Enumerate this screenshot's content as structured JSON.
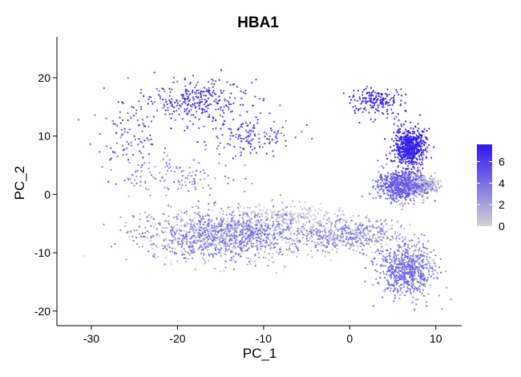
{
  "chart_data": {
    "type": "scatter",
    "title": "HBA1",
    "xlabel": "PC_1",
    "ylabel": "PC_2",
    "xlim": [
      -34,
      13
    ],
    "ylim": [
      -22.5,
      27
    ],
    "x_ticks": [
      -30,
      -20,
      -10,
      0,
      10
    ],
    "y_ticks": [
      -20,
      -10,
      0,
      10,
      20
    ],
    "x_tick_labels": [
      "-30",
      "-20",
      "-10",
      "0",
      "10"
    ],
    "y_tick_labels": [
      "-20",
      "-10",
      "0",
      "10",
      "20"
    ],
    "color_scale": {
      "low_color": "#d3d3d3",
      "high_color": "#2e16f2",
      "range": [
        0,
        7.6
      ],
      "ticks": [
        0,
        2,
        4,
        6
      ],
      "tick_labels": [
        "0",
        "2",
        "4",
        "6"
      ]
    },
    "grid": false,
    "legend_position": "right",
    "clusters": [
      {
        "center": [
          -18,
          16
        ],
        "spread": [
          5.5,
          3.5
        ],
        "count": 300,
        "expr": [
          4.5,
          7.6
        ]
      },
      {
        "center": [
          -26,
          10
        ],
        "spread": [
          3.5,
          5
        ],
        "count": 90,
        "expr": [
          4,
          7
        ]
      },
      {
        "center": [
          -12,
          10
        ],
        "spread": [
          5,
          3
        ],
        "count": 140,
        "expr": [
          4,
          7
        ]
      },
      {
        "center": [
          3,
          16
        ],
        "spread": [
          3,
          2
        ],
        "count": 180,
        "expr": [
          5.5,
          7.6
        ]
      },
      {
        "center": [
          7,
          8
        ],
        "spread": [
          1.6,
          3
        ],
        "count": 620,
        "expr": [
          6,
          7.6
        ]
      },
      {
        "center": [
          -20,
          3
        ],
        "spread": [
          6,
          3
        ],
        "count": 120,
        "expr": [
          2,
          5
        ]
      },
      {
        "center": [
          -14,
          -7
        ],
        "spread": [
          9,
          3.8
        ],
        "count": 1300,
        "expr": [
          0,
          5
        ]
      },
      {
        "center": [
          0,
          -7
        ],
        "spread": [
          5,
          2.5
        ],
        "count": 450,
        "expr": [
          0,
          4.5
        ]
      },
      {
        "center": [
          6,
          1.5
        ],
        "spread": [
          2.5,
          2.2
        ],
        "count": 700,
        "expr": [
          2.5,
          5.5
        ]
      },
      {
        "center": [
          9,
          1.5
        ],
        "spread": [
          1.2,
          1.2
        ],
        "count": 220,
        "expr": [
          0,
          1.5
        ]
      },
      {
        "center": [
          6.5,
          -13
        ],
        "spread": [
          3,
          4
        ],
        "count": 650,
        "expr": [
          2.5,
          5
        ]
      },
      {
        "center": [
          -7,
          -4
        ],
        "spread": [
          6,
          2
        ],
        "count": 250,
        "expr": [
          0,
          1
        ]
      }
    ]
  }
}
